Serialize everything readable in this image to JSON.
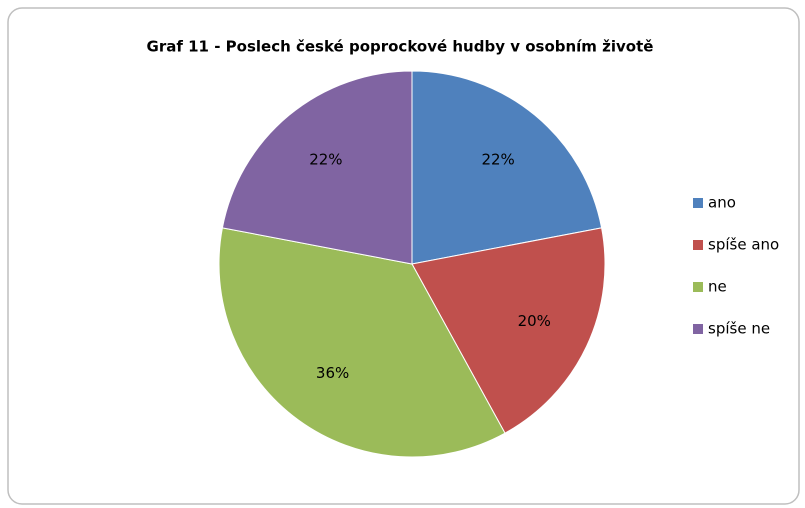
{
  "chart_data": {
    "type": "pie",
    "title": "Graf 11 - Poslech české poprockové hudby v osobním životě",
    "categories": [
      "ano",
      "spíše ano",
      "ne",
      "spíše ne"
    ],
    "values": [
      22,
      20,
      36,
      22
    ],
    "value_labels": [
      "22%",
      "20%",
      "36%",
      "22%"
    ],
    "colors": [
      "#4f81bd",
      "#c0504d",
      "#9bbb59",
      "#8064a2"
    ],
    "legend": "right"
  }
}
